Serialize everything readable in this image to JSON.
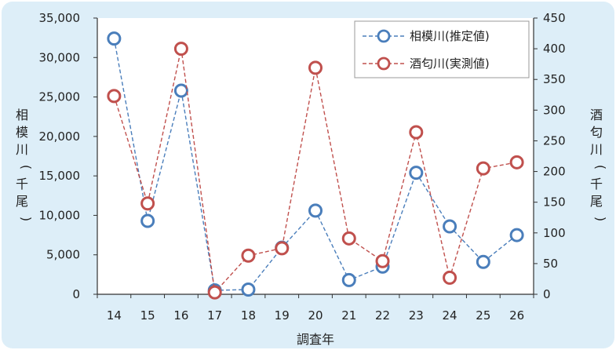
{
  "chart_data": {
    "type": "line",
    "x": [
      "14",
      "15",
      "16",
      "17",
      "18",
      "19",
      "20",
      "21",
      "22",
      "23",
      "24",
      "25",
      "26"
    ],
    "xlabel": "調査年",
    "ylabel_left": "相模川(千尾)",
    "ylabel_right": "酒匂川(千尾)",
    "ylim_left": [
      0,
      35000
    ],
    "ylim_right": [
      0,
      450
    ],
    "yticks_left": [
      "0",
      "5,000",
      "10,000",
      "15,000",
      "20,000",
      "25,000",
      "30,000",
      "35,000"
    ],
    "yticks_right": [
      "0",
      "50",
      "100",
      "150",
      "200",
      "250",
      "300",
      "350",
      "400",
      "450"
    ],
    "grid": false,
    "legend": "top-right",
    "series": [
      {
        "name": "相模川(推定値)",
        "axis": "left",
        "color": "#4a7ebb",
        "values": [
          32400,
          9300,
          25800,
          500,
          600,
          5900,
          10600,
          1800,
          3500,
          15400,
          8600,
          4100,
          7500
        ]
      },
      {
        "name": "酒匂川(実測値)",
        "axis": "right",
        "color": "#c0504d",
        "values": [
          323,
          148,
          400,
          3,
          63,
          75,
          369,
          91,
          54,
          264,
          27,
          205,
          215
        ]
      }
    ]
  },
  "colors": {
    "background": "#ddeef8",
    "plot": "#ffffff"
  }
}
